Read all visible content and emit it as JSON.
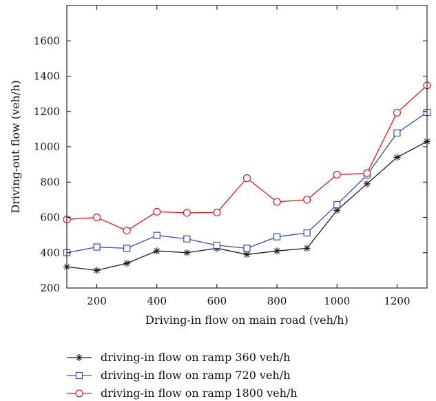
{
  "chart_data": {
    "type": "line",
    "title": "",
    "xlabel": "Driving-in flow on main road (veh/h)",
    "ylabel": "Driving-out flow (veh/h)",
    "xlim": [
      100,
      1300
    ],
    "ylim": [
      200,
      1800
    ],
    "xticks": [
      200,
      400,
      600,
      800,
      1000,
      1200
    ],
    "yticks": [
      200,
      400,
      600,
      800,
      1000,
      1200,
      1400,
      1600
    ],
    "grid": false,
    "legend_position": "bottom-outside",
    "x": [
      100,
      200,
      300,
      400,
      500,
      600,
      700,
      800,
      900,
      1000,
      1100,
      1200,
      1300
    ],
    "series": [
      {
        "name": "driving-in flow on ramp 360 veh/h",
        "color": "#1a1a1a",
        "marker": "star",
        "values": [
          320,
          300,
          340,
          410,
          400,
          425,
          390,
          410,
          425,
          640,
          790,
          940,
          1030
        ]
      },
      {
        "name": "driving-in flow on ramp 720 veh/h",
        "color": "#2f4fa6",
        "marker": "square",
        "values": [
          400,
          432,
          425,
          498,
          478,
          442,
          425,
          490,
          512,
          672,
          840,
          1078,
          1195
        ]
      },
      {
        "name": "driving-in flow on ramp 1800 veh/h",
        "color": "#e0191e",
        "marker": "circle",
        "values": [
          588,
          600,
          525,
          632,
          626,
          628,
          822,
          688,
          700,
          842,
          850,
          1193,
          1348
        ]
      }
    ]
  }
}
